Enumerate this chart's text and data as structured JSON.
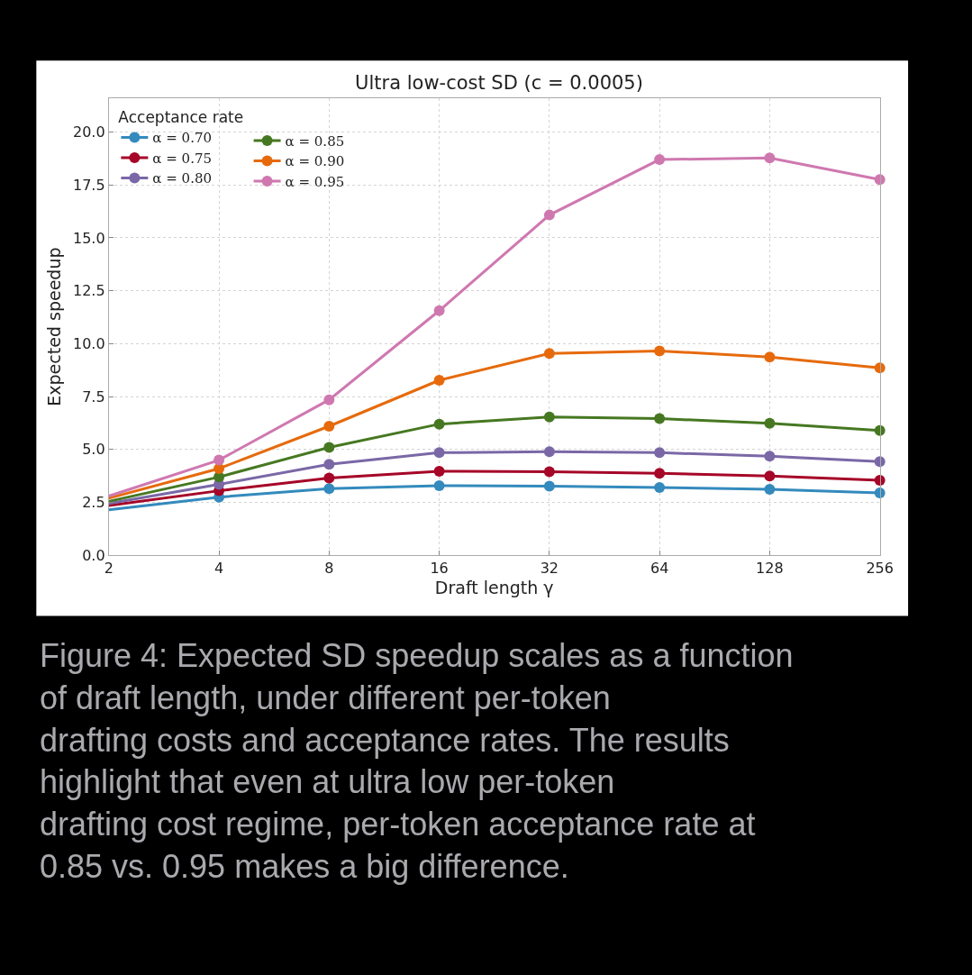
{
  "chart_data": {
    "type": "line",
    "title": "Ultra low-cost SD (c = 0.0005)",
    "xlabel": "Draft length γ",
    "ylabel": "Expected speedup",
    "legend_title": "Acceptance rate",
    "x": [
      2,
      4,
      8,
      16,
      32,
      64,
      128,
      256
    ],
    "series": [
      {
        "name": "α = 0.70",
        "color": "#348abd",
        "values": [
          2.15,
          2.75,
          3.15,
          3.29,
          3.27,
          3.2,
          3.12,
          2.95
        ]
      },
      {
        "name": "α = 0.75",
        "color": "#a60628",
        "values": [
          2.35,
          3.05,
          3.65,
          3.97,
          3.95,
          3.88,
          3.75,
          3.54
        ]
      },
      {
        "name": "α = 0.80",
        "color": "#7a68a6",
        "values": [
          2.45,
          3.35,
          4.3,
          4.85,
          4.9,
          4.85,
          4.68,
          4.43
        ]
      },
      {
        "name": "α = 0.85",
        "color": "#467821",
        "values": [
          2.55,
          3.7,
          5.1,
          6.2,
          6.54,
          6.46,
          6.24,
          5.9
        ]
      },
      {
        "name": "α = 0.90",
        "color": "#e66a0c",
        "values": [
          2.7,
          4.1,
          6.1,
          8.27,
          9.54,
          9.66,
          9.37,
          8.86
        ]
      },
      {
        "name": "α = 0.95",
        "color": "#cf78b0",
        "values": [
          2.8,
          4.5,
          7.35,
          11.56,
          16.08,
          18.7,
          18.78,
          17.76
        ]
      }
    ],
    "log": "x",
    "xlim": [
      2,
      256
    ],
    "xticks": [
      2,
      4,
      8,
      16,
      32,
      64,
      128,
      256
    ],
    "ylim": [
      0,
      21.6
    ],
    "yticks": [
      {
        "value": 0,
        "label": "0.0"
      },
      2.5,
      {
        "value": 5,
        "label": "5.0"
      },
      7.5,
      {
        "value": 10,
        "label": "10.0"
      },
      12.5,
      {
        "value": 15,
        "label": "15.0"
      },
      17.5,
      {
        "value": 20,
        "label": "20.0"
      }
    ],
    "grid": true,
    "legend": "top left",
    "marker": "circle",
    "line_style": "solid",
    "annotations": [
      "Figure 4: Expected SD speedup scales as a function of draft length, under different per-token drafting costs and acceptance rates. The results highlight that even at ultra low per-token drafting cost regime, per-token acceptance rate at 0.85 vs. 0.95 makes a big difference."
    ]
  }
}
